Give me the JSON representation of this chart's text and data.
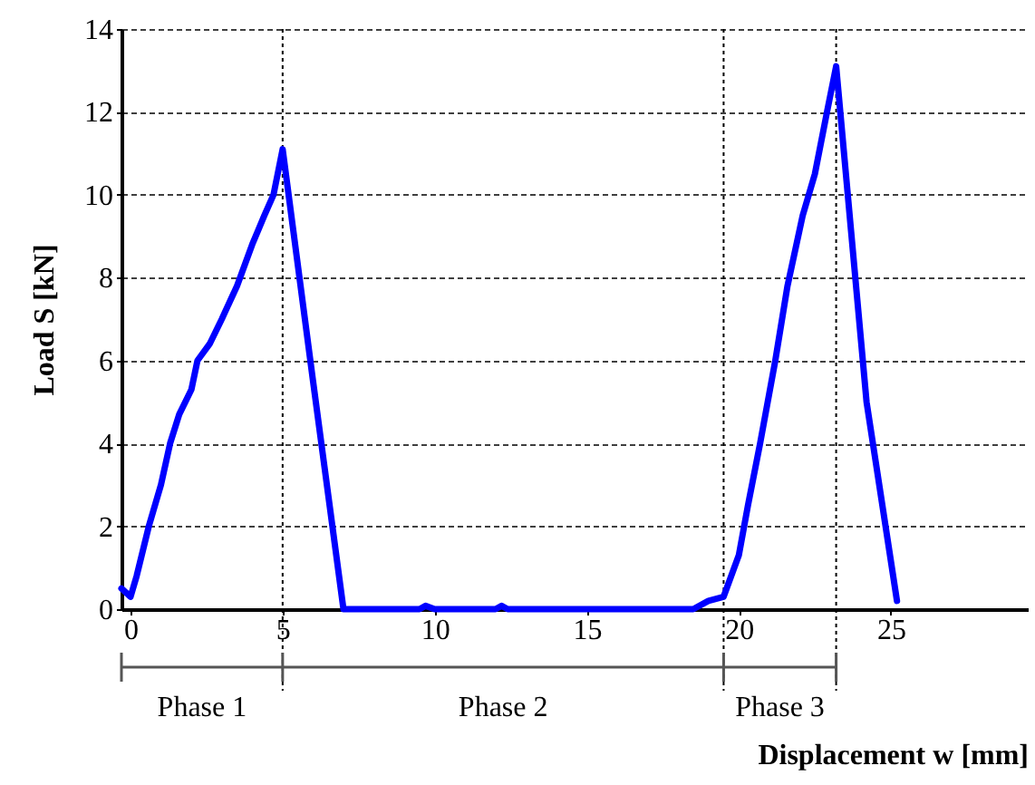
{
  "chart_data": {
    "type": "line",
    "xlabel": "Displacement w [mm]",
    "ylabel": "Load S [kN]",
    "series": [
      {
        "color": "#0000ff",
        "x": [
          -0.3,
          0.0,
          0.2,
          0.6,
          1.0,
          1.3,
          1.6,
          2.0,
          2.2,
          2.6,
          3.0,
          3.5,
          4.0,
          4.4,
          4.7,
          5.0,
          6.0,
          7.0,
          8.0,
          9.5,
          9.7,
          10.0,
          12.0,
          12.2,
          12.4,
          15.0,
          18.5,
          19.0,
          19.5,
          20.0,
          20.3,
          20.7,
          21.2,
          21.6,
          22.1,
          22.5,
          22.9,
          23.2,
          24.2,
          25.2
        ],
        "values": [
          0.5,
          0.3,
          0.8,
          2.0,
          3.0,
          4.0,
          4.7,
          5.3,
          6.0,
          6.4,
          7.0,
          7.8,
          8.8,
          9.5,
          10.0,
          11.1,
          5.5,
          0.0,
          0.0,
          0.0,
          0.08,
          0.0,
          0.0,
          0.08,
          0.0,
          0.0,
          0.0,
          0.2,
          0.3,
          1.3,
          2.5,
          4.0,
          6.0,
          7.8,
          9.5,
          10.5,
          12.0,
          13.1,
          5.0,
          0.2
        ]
      }
    ],
    "xlim": [
      -0.3,
      29.5
    ],
    "xticks": [
      0,
      5,
      10,
      15,
      20,
      25
    ],
    "ylim": [
      0,
      14
    ],
    "yticks": [
      0,
      2,
      4,
      6,
      8,
      10,
      12,
      14
    ],
    "grid": "y",
    "line_style": "solid",
    "marker": "none",
    "ref_lines": [
      {
        "axis": "x",
        "value": 5,
        "line_style": "dotted",
        "color": "#000000"
      },
      {
        "axis": "x",
        "value": 19.5,
        "line_style": "dotted",
        "color": "#000000"
      },
      {
        "axis": "x",
        "value": 23.2,
        "line_style": "dotted",
        "color": "#000000"
      }
    ],
    "annotations": [
      "Phase 1",
      "Phase 2",
      "Phase 3"
    ]
  }
}
